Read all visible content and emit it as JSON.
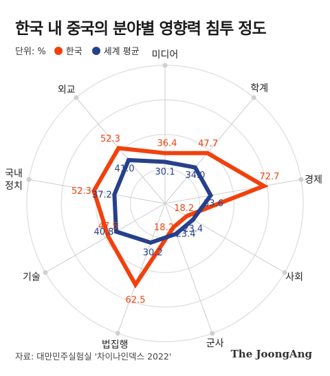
{
  "title": "한국 내 중국의 분야별 영향력 침투 정도",
  "legend": {
    "unit": "단위: %",
    "korea": "한국",
    "world": "세계 평균"
  },
  "colors": {
    "korea": "#f2400d",
    "world": "#27408b",
    "grid": "#e2e2e2",
    "axis": "#cccccc",
    "text": "#222222"
  },
  "chart_data": {
    "type": "radar",
    "title": "한국 내 중국의 분야별 영향력 침투 정도",
    "unit": "%",
    "categories": [
      "미디어",
      "학계",
      "경제",
      "사회",
      "군사",
      "법집행",
      "기술",
      "국내 정치",
      "외교"
    ],
    "series": [
      {
        "name": "한국",
        "values": [
          36.4,
          47.7,
          72.7,
          18.2,
          18.2,
          62.5,
          47.5,
          52.3,
          52.3
        ]
      },
      {
        "name": "세계 평균",
        "values": [
          30.1,
          34.0,
          33.6,
          23.4,
          23.4,
          30.2,
          40.8,
          37.2,
          41.0
        ]
      }
    ],
    "grid": true,
    "legend_position": "top-left"
  },
  "footer": {
    "source": "자료: 대만민주실험실 '차이나인덱스 2022'",
    "brand": "The JoongAng"
  }
}
